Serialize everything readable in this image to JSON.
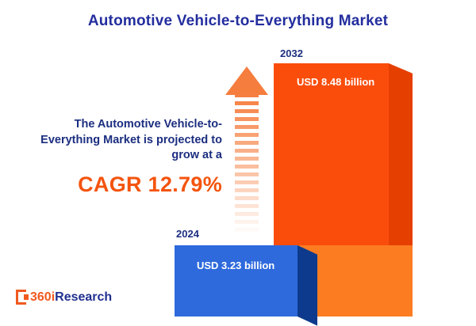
{
  "title": "Automotive Vehicle-to-Everything Market",
  "annotation": {
    "line1": "The Automotive Vehicle-to-",
    "line2": "Everything Market is projected to",
    "line3": "grow at a",
    "cagr": "CAGR 12.79%"
  },
  "chart_data": {
    "type": "bar",
    "categories": [
      "2024",
      "2032"
    ],
    "values": [
      3.23,
      8.48
    ],
    "unit": "USD billion",
    "value_labels": [
      "USD 3.23 billion",
      "USD 8.48 billion"
    ],
    "title": "Automotive Vehicle-to-Everything Market",
    "cagr_percent": 12.79,
    "annotation": "The Automotive Vehicle-to-Everything Market is projected to grow at a CAGR 12.79%",
    "bar_colors": [
      "#2e6adc",
      "#fa4d0b"
    ],
    "axes": "none",
    "grid": false,
    "legend": "none"
  },
  "logo": {
    "part1": "360i",
    "part2": "Research"
  },
  "colors": {
    "title_blue": "#232e9e",
    "navy_text": "#1c2e80",
    "accent_orange": "#f4540e",
    "bar_blue": "#2e6adc",
    "bar_blue_side": "#0d3a8c",
    "bar_orange": "#fa4d0b",
    "bar_orange_side": "#e63f02",
    "bar_orange_light": "#fc7c22",
    "arrow_orange": "#f57d3e"
  }
}
